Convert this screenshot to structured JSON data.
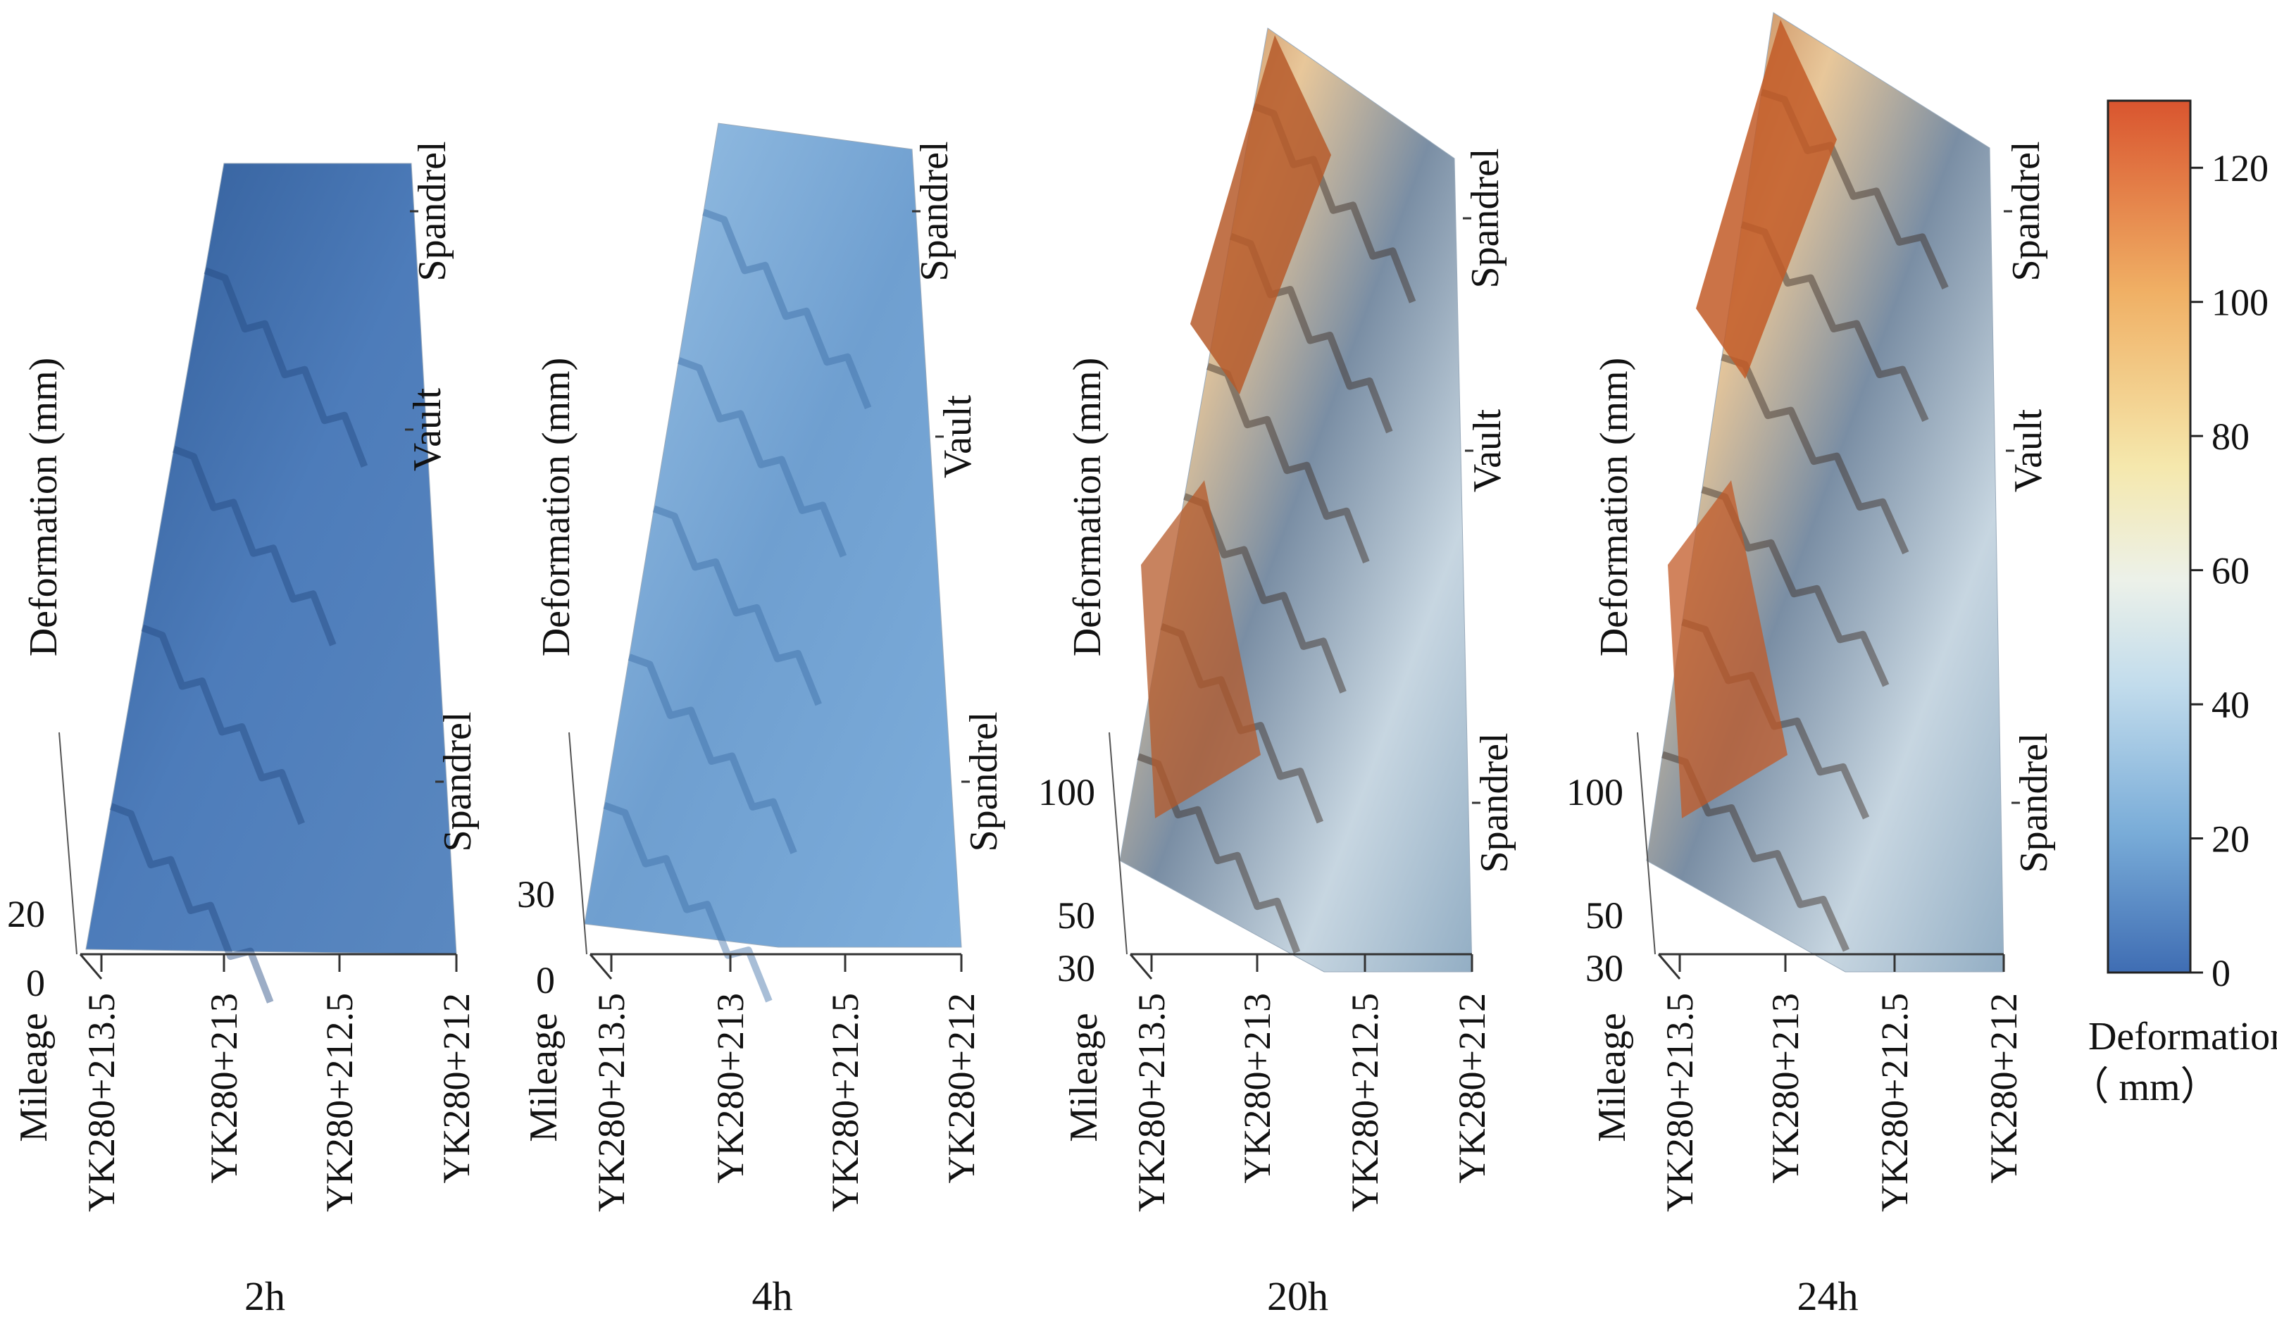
{
  "chart_data": [
    {
      "type": "surface",
      "panel_label": "2h",
      "z_ticks": [
        "20",
        "0"
      ],
      "zlabel": "Deformation (mm)",
      "xlabel": "Mileage",
      "x_ticks": [
        "YK280+213.5",
        "YK280+213",
        "YK280+212.5",
        "YK280+212"
      ],
      "section_labels": [
        "Spandrel",
        "Vault",
        "Spandrel"
      ],
      "peak_deformation_mm": 25
    },
    {
      "type": "surface",
      "panel_label": "4h",
      "z_ticks": [
        "30",
        "0"
      ],
      "zlabel": "Deformation (mm)",
      "xlabel": "Mileage",
      "x_ticks": [
        "YK280+213.5",
        "YK280+213",
        "YK280+212.5",
        "YK280+212"
      ],
      "section_labels": [
        "Spandrel",
        "Vault",
        "Spandrel"
      ],
      "peak_deformation_mm": 32
    },
    {
      "type": "surface",
      "panel_label": "20h",
      "z_ticks": [
        "100",
        "50",
        "30"
      ],
      "zlabel": "Deformation (mm)",
      "xlabel": "Mileage",
      "x_ticks": [
        "YK280+213.5",
        "YK280+213",
        "YK280+212.5",
        "YK280+212"
      ],
      "section_labels": [
        "Spandrel",
        "Vault",
        "Spandrel"
      ],
      "peak_deformation_mm": 120
    },
    {
      "type": "surface",
      "panel_label": "24h",
      "z_ticks": [
        "100",
        "50",
        "30"
      ],
      "zlabel": "Deformation (mm)",
      "xlabel": "Mileage",
      "x_ticks": [
        "YK280+213.5",
        "YK280+213",
        "YK280+212.5",
        "YK280+212"
      ],
      "section_labels": [
        "Spandrel",
        "Vault",
        "Spandrel"
      ],
      "peak_deformation_mm": 128
    }
  ],
  "colorbar": {
    "label_line1": "Deformation",
    "label_line2": "（ mm）",
    "ticks": [
      "120",
      "100",
      "80",
      "60",
      "40",
      "20",
      "0"
    ],
    "range": [
      0,
      130
    ],
    "stops": [
      "#3f6db3",
      "#79acd8",
      "#c2dcec",
      "#ecf1e9",
      "#f5e8ad",
      "#f0b065",
      "#d9552f"
    ]
  }
}
